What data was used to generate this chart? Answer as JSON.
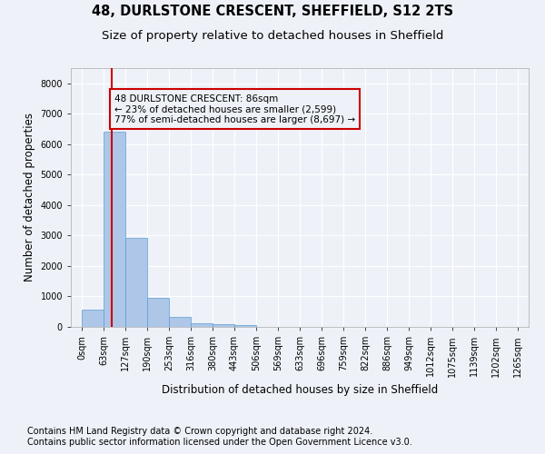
{
  "title": "48, DURLSTONE CRESCENT, SHEFFIELD, S12 2TS",
  "subtitle": "Size of property relative to detached houses in Sheffield",
  "xlabel": "Distribution of detached houses by size in Sheffield",
  "ylabel": "Number of detached properties",
  "bar_values": [
    560,
    6400,
    2920,
    960,
    330,
    130,
    90,
    60,
    0,
    0,
    0,
    0,
    0,
    0,
    0,
    0,
    0,
    0,
    0,
    0
  ],
  "bin_labels": [
    "0sqm",
    "63sqm",
    "127sqm",
    "190sqm",
    "253sqm",
    "316sqm",
    "380sqm",
    "443sqm",
    "506sqm",
    "569sqm",
    "633sqm",
    "696sqm",
    "759sqm",
    "822sqm",
    "886sqm",
    "949sqm",
    "1012sqm",
    "1075sqm",
    "1139sqm",
    "1202sqm",
    "1265sqm"
  ],
  "bar_color": "#aec6e8",
  "bar_edge_color": "#5a9fd4",
  "property_line_color": "#cc0000",
  "annotation_box_color": "#cc0000",
  "annotation_text": "48 DURLSTONE CRESCENT: 86sqm\n← 23% of detached houses are smaller (2,599)\n77% of semi-detached houses are larger (8,697) →",
  "ylim": [
    0,
    8500
  ],
  "yticks": [
    0,
    1000,
    2000,
    3000,
    4000,
    5000,
    6000,
    7000,
    8000
  ],
  "footnote1": "Contains HM Land Registry data © Crown copyright and database right 2024.",
  "footnote2": "Contains public sector information licensed under the Open Government Licence v3.0.",
  "background_color": "#eef2f8",
  "grid_color": "#ffffff",
  "title_fontsize": 10.5,
  "subtitle_fontsize": 9.5,
  "axis_label_fontsize": 8.5,
  "tick_fontsize": 7,
  "annotation_fontsize": 7.5,
  "footnote_fontsize": 7
}
